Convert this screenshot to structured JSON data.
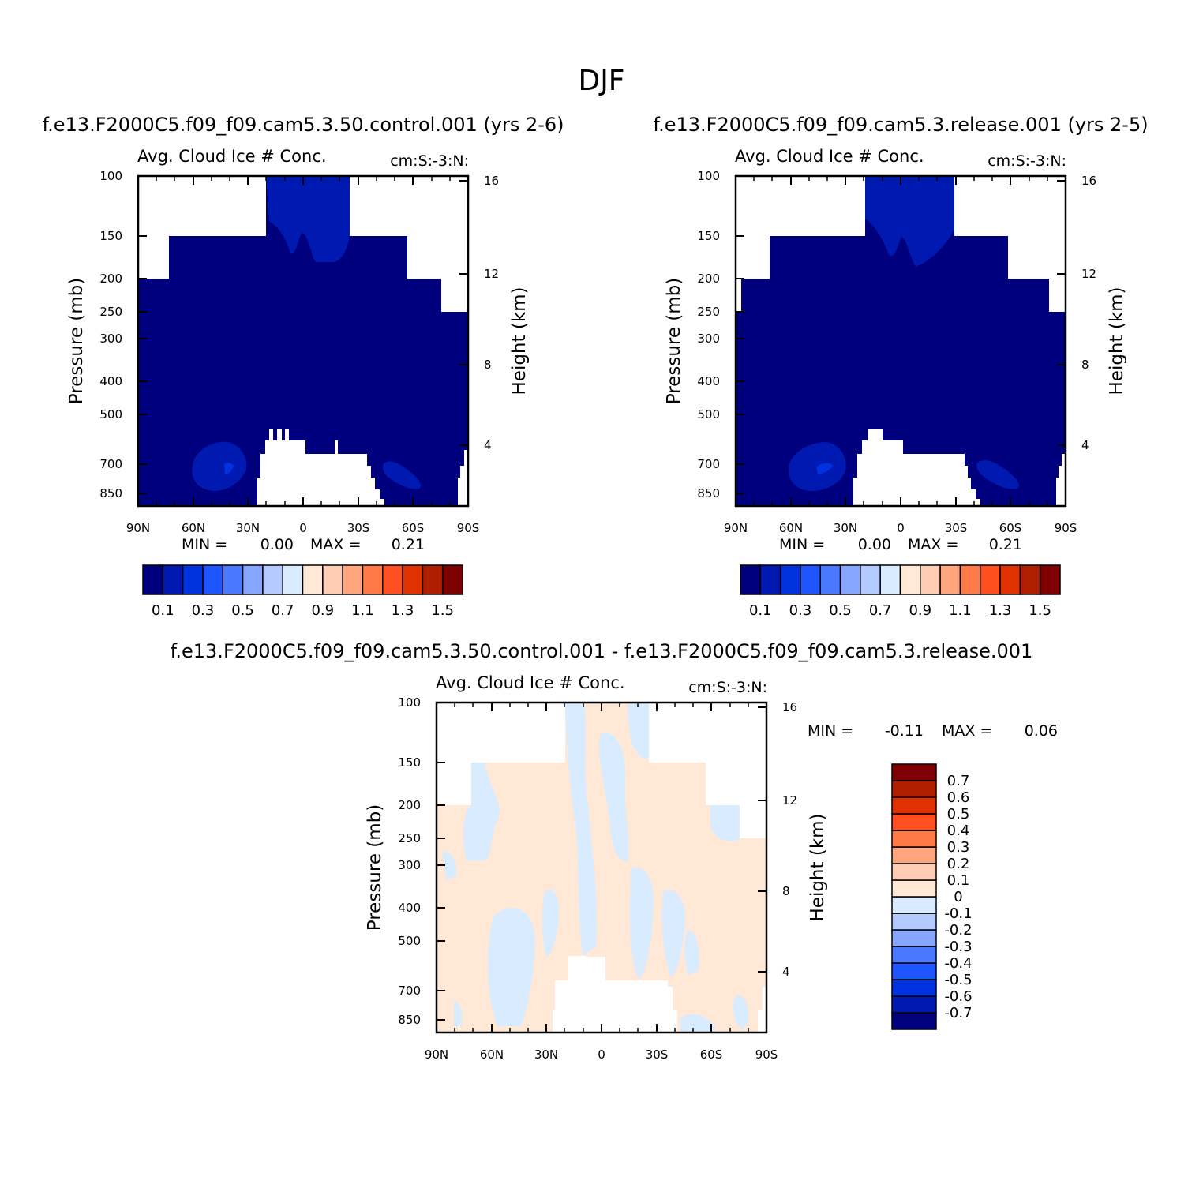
{
  "page": {
    "title": "DJF"
  },
  "colors": {
    "abs_palette": [
      "#00007f",
      "#0019b0",
      "#0032e0",
      "#1f55ff",
      "#4a78ff",
      "#86a6ff",
      "#b3c9ff",
      "#d9ebff",
      "#ffe8d6",
      "#ffcdb3",
      "#ffa67f",
      "#ff7a47",
      "#ff4e1f",
      "#e03200",
      "#b01e00",
      "#7f0000"
    ],
    "diff_palette": [
      "#00007f",
      "#0019b0",
      "#0032e0",
      "#1f55ff",
      "#4a78ff",
      "#86a6ff",
      "#b3c9ff",
      "#d9ebff",
      "#ffe8d6",
      "#ffcdb3",
      "#ffa67f",
      "#ff7a47",
      "#ff4e1f",
      "#e03200",
      "#b01e00",
      "#7f0000"
    ],
    "missing": "#ffffff"
  },
  "chart_data": [
    {
      "type": "heatmap",
      "panel_title": "f.e13.F2000C5.f09_f09.cam5.3.50.control.001 (yrs 2-6)",
      "left_label": "Avg. Cloud Ice # Conc.",
      "right_label": "cm:S:-3:N:",
      "ylabel": "Pressure (mb)",
      "y2label": "Height (km)",
      "x_ticks": [
        "90N",
        "60N",
        "30N",
        "0",
        "30S",
        "60S",
        "90S"
      ],
      "y_ticks": [
        "100",
        "150",
        "200",
        "250",
        "300",
        "400",
        "500",
        "700",
        "850"
      ],
      "y2_ticks": [
        "16",
        "12",
        "8",
        "4"
      ],
      "stats": {
        "min_label": "MIN =",
        "min": "0.00",
        "max_label": "MAX =",
        "max": "0.21"
      },
      "colorbar": {
        "orientation": "horizontal",
        "labels": [
          "0.1",
          "0.3",
          "0.5",
          "0.7",
          "0.9",
          "1.1",
          "1.3",
          "1.5"
        ]
      },
      "dominant_level": 0,
      "secondary_level": 1,
      "secondary_regions": [
        "upper tropical tropopause (0 to 15S, 100-200 mb)",
        "60N-30N near 700 mb",
        "40S-65S near 750 mb"
      ]
    },
    {
      "type": "heatmap",
      "panel_title": "f.e13.F2000C5.f09_f09.cam5.3.release.001 (yrs 2-5)",
      "left_label": "Avg. Cloud Ice # Conc.",
      "right_label": "cm:S:-3:N:",
      "ylabel": "Pressure (mb)",
      "y2label": "Height (km)",
      "x_ticks": [
        "90N",
        "60N",
        "30N",
        "0",
        "30S",
        "60S",
        "90S"
      ],
      "y_ticks": [
        "100",
        "150",
        "200",
        "250",
        "300",
        "400",
        "500",
        "700",
        "850"
      ],
      "y2_ticks": [
        "16",
        "12",
        "8",
        "4"
      ],
      "stats": {
        "min_label": "MIN =",
        "min": "0.00",
        "max_label": "MAX =",
        "max": "0.21"
      },
      "colorbar": {
        "orientation": "horizontal",
        "labels": [
          "0.1",
          "0.3",
          "0.5",
          "0.7",
          "0.9",
          "1.1",
          "1.3",
          "1.5"
        ]
      },
      "dominant_level": 0,
      "secondary_level": 1
    },
    {
      "type": "heatmap",
      "panel_title": "f.e13.F2000C5.f09_f09.cam5.3.50.control.001 - f.e13.F2000C5.f09_f09.cam5.3.release.001",
      "left_label": "Avg. Cloud Ice # Conc.",
      "right_label": "cm:S:-3:N:",
      "ylabel": "Pressure (mb)",
      "y2label": "Height (km)",
      "x_ticks": [
        "90N",
        "60N",
        "30N",
        "0",
        "30S",
        "60S",
        "90S"
      ],
      "y_ticks": [
        "100",
        "150",
        "200",
        "250",
        "300",
        "400",
        "500",
        "700",
        "850"
      ],
      "y2_ticks": [
        "16",
        "12",
        "8",
        "4"
      ],
      "stats": {
        "min_label": "MIN =",
        "min": "-0.11",
        "max_label": "MAX =",
        "max": "0.06"
      },
      "colorbar": {
        "orientation": "vertical",
        "labels": [
          "0.7",
          "0.6",
          "0.5",
          "0.4",
          "0.3",
          "0.2",
          "0.1",
          "0",
          "-0.1",
          "-0.2",
          "-0.3",
          "-0.4",
          "-0.5",
          "-0.6",
          "-0.7"
        ]
      },
      "dominant_level": "0 to 0.1",
      "secondary_level": "-0.1 to 0"
    }
  ]
}
